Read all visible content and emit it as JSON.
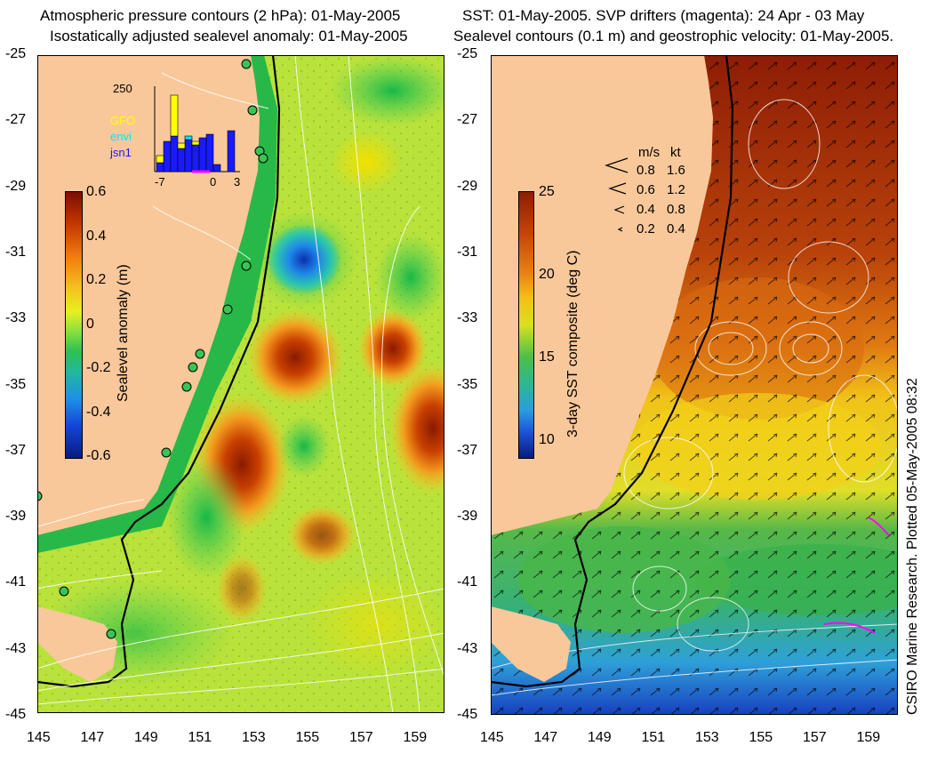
{
  "left": {
    "title_line1": "Atmospheric pressure contours (2 hPa): 01-May-2005",
    "title_line2": "Isostatically adjusted sealevel anomaly: 01-May-2005",
    "colorbar": {
      "label": "Sealevel anomaly (m)",
      "ticks": [
        "0.6",
        "0.4",
        "0.2",
        "0",
        "-0.2",
        "-0.4",
        "-0.6"
      ]
    },
    "histogram": {
      "ymax_label": "250",
      "x_ticks": [
        "-7",
        "0",
        "3"
      ],
      "legend": [
        {
          "label": "GFO",
          "color": "#ffff00"
        },
        {
          "label": "envi",
          "color": "#00e5ff"
        },
        {
          "label": "jsn1",
          "color": "#1a1aff"
        }
      ]
    }
  },
  "right": {
    "title_line1": "SST: 01-May-2005. SVP drifters (magenta): 24 Apr - 03 May",
    "title_line2": "Sealevel contours (0.1 m) and geostrophic velocity: 01-May-2005.",
    "colorbar": {
      "label": "3-day SST composite (deg C)",
      "ticks": [
        "25",
        "20",
        "15",
        "10"
      ]
    },
    "velocity_key": {
      "header_ms": "m/s",
      "header_kt": "kt",
      "rows": [
        {
          "ms": "0.8",
          "kt": "1.6"
        },
        {
          "ms": "0.6",
          "kt": "1.2"
        },
        {
          "ms": "0.4",
          "kt": "0.8"
        },
        {
          "ms": "0.2",
          "kt": "0.4"
        }
      ]
    },
    "credit": "CSIRO Marine Research. Plotted 05-May-2005 08:32"
  },
  "axes": {
    "y_ticks": [
      "-25",
      "-27",
      "-29",
      "-31",
      "-33",
      "-35",
      "-37",
      "-39",
      "-41",
      "-43",
      "-45"
    ],
    "x_ticks": [
      "145",
      "147",
      "149",
      "151",
      "153",
      "155",
      "157",
      "159"
    ]
  },
  "colors": {
    "land": "#f9c89a",
    "coast": "#000000",
    "contour": "#ffffff",
    "drifter": "#ff00ff"
  }
}
